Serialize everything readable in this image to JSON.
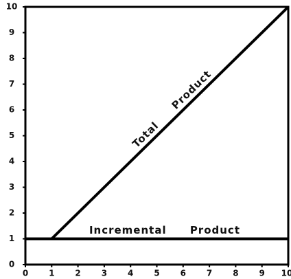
{
  "chart_data": {
    "type": "line",
    "series": [
      {
        "name": "Total Product",
        "color": "#000000",
        "x": [
          1,
          10
        ],
        "values": [
          1,
          10
        ]
      },
      {
        "name": "Incremental Product",
        "color": "#000000",
        "x": [
          0,
          10
        ],
        "values": [
          1,
          1
        ]
      }
    ],
    "xlim": [
      0,
      10
    ],
    "ylim": [
      0,
      10
    ],
    "xticks": [
      0,
      1,
      2,
      3,
      4,
      5,
      6,
      7,
      8,
      9,
      10
    ],
    "yticks": [
      0,
      1,
      2,
      3,
      4,
      5,
      6,
      7,
      8,
      9,
      10
    ]
  }
}
